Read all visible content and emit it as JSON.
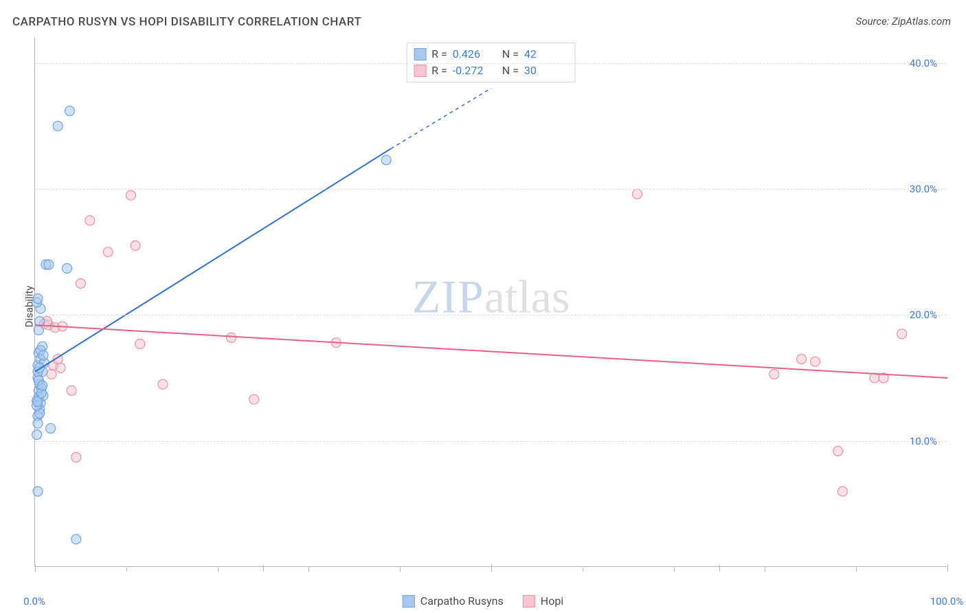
{
  "title": "CARPATHO RUSYN VS HOPI DISABILITY CORRELATION CHART",
  "source": "Source: ZipAtlas.com",
  "watermark": {
    "zip": "ZIP",
    "atlas": "atlas"
  },
  "ylabel": "Disability",
  "chart": {
    "type": "scatter-with-trend",
    "xlim": [
      0,
      100
    ],
    "ylim": [
      0,
      42
    ],
    "yticks": [
      10,
      20,
      30,
      40
    ],
    "ytick_labels": [
      "10.0%",
      "20.0%",
      "30.0%",
      "40.0%"
    ],
    "xticks": [
      0,
      25,
      50,
      75,
      100
    ],
    "xtick_minor": [
      10,
      20,
      30,
      40,
      60,
      70,
      80,
      90
    ],
    "xtick_labels": {
      "0": "0.0%",
      "100": "100.0%"
    },
    "background_color": "#ffffff",
    "grid_color": "#dcdcdc",
    "axis_color": "#b8b8b8",
    "tick_label_color": "#3b7dd8",
    "marker_radius": 7,
    "marker_opacity": 0.55,
    "line_width": 2
  },
  "series": {
    "a": {
      "label": "Carpatho Rusyns",
      "color_fill": "#a8c8ef",
      "color_stroke": "#6fa3e0",
      "R": "0.426",
      "N": "42",
      "trend": {
        "x1": 0,
        "y1": 15.5,
        "x2": 39,
        "y2": 33.2,
        "x2_ext": 50,
        "y2_ext": 38.0
      },
      "points": [
        [
          0.3,
          16
        ],
        [
          0.3,
          15
        ],
        [
          0.4,
          14
        ],
        [
          0.5,
          14.5
        ],
        [
          0.4,
          13.5
        ],
        [
          0.6,
          13
        ],
        [
          0.5,
          12.5
        ],
        [
          0.3,
          12
        ],
        [
          0.4,
          17
        ],
        [
          0.6,
          16.5
        ],
        [
          0.8,
          15.5
        ],
        [
          0.3,
          15.5
        ],
        [
          0.7,
          14.2
        ],
        [
          0.2,
          13.2
        ],
        [
          0.5,
          12.2
        ],
        [
          0.9,
          13.6
        ],
        [
          1.0,
          16.2
        ],
        [
          0.8,
          17.5
        ],
        [
          0.4,
          18.8
        ],
        [
          0.5,
          19.5
        ],
        [
          0.6,
          20.5
        ],
        [
          0.2,
          21
        ],
        [
          0.3,
          21.3
        ],
        [
          1.2,
          24
        ],
        [
          1.5,
          24
        ],
        [
          3.5,
          23.7
        ],
        [
          0.3,
          11.4
        ],
        [
          1.7,
          11
        ],
        [
          0.2,
          10.5
        ],
        [
          0.3,
          6.0
        ],
        [
          4.5,
          2.2
        ],
        [
          3.8,
          36.2
        ],
        [
          2.5,
          35.0
        ],
        [
          38.5,
          32.3
        ],
        [
          0.4,
          14.8
        ],
        [
          0.7,
          13.8
        ],
        [
          0.2,
          12.8
        ],
        [
          0.5,
          15.8
        ],
        [
          0.8,
          14.4
        ],
        [
          0.6,
          17.2
        ],
        [
          0.3,
          13.1
        ],
        [
          0.9,
          16.8
        ]
      ]
    },
    "b": {
      "label": "Hopi",
      "color_fill": "#f7c6d2",
      "color_stroke": "#ec8fa9",
      "R": "-0.272",
      "N": "30",
      "trend": {
        "x1": 0,
        "y1": 19.2,
        "x2": 100,
        "y2": 15.0
      },
      "points": [
        [
          1.0,
          19.3
        ],
        [
          1.5,
          19.2
        ],
        [
          1.3,
          19.5
        ],
        [
          2.2,
          19.0
        ],
        [
          2.0,
          16.0
        ],
        [
          1.8,
          15.3
        ],
        [
          2.5,
          16.5
        ],
        [
          4.0,
          14.0
        ],
        [
          4.5,
          8.7
        ],
        [
          5.0,
          22.5
        ],
        [
          6.0,
          27.5
        ],
        [
          8.0,
          25.0
        ],
        [
          10.5,
          29.5
        ],
        [
          11.0,
          25.5
        ],
        [
          11.5,
          17.7
        ],
        [
          14.0,
          14.5
        ],
        [
          21.5,
          18.2
        ],
        [
          24.0,
          13.3
        ],
        [
          33.0,
          17.8
        ],
        [
          66.0,
          29.6
        ],
        [
          81.0,
          15.3
        ],
        [
          84.0,
          16.5
        ],
        [
          85.5,
          16.3
        ],
        [
          92.0,
          15.0
        ],
        [
          93.0,
          15.0
        ],
        [
          95.0,
          18.5
        ],
        [
          88.0,
          9.2
        ],
        [
          88.5,
          6.0
        ],
        [
          3.0,
          19.1
        ],
        [
          2.8,
          15.8
        ]
      ]
    }
  },
  "legend_top": [
    {
      "swatch": "a",
      "R_label": "R =",
      "N_label": "N ="
    },
    {
      "swatch": "b",
      "R_label": "R =",
      "N_label": "N ="
    }
  ],
  "legend_bottom": [
    {
      "swatch": "a"
    },
    {
      "swatch": "b"
    }
  ]
}
